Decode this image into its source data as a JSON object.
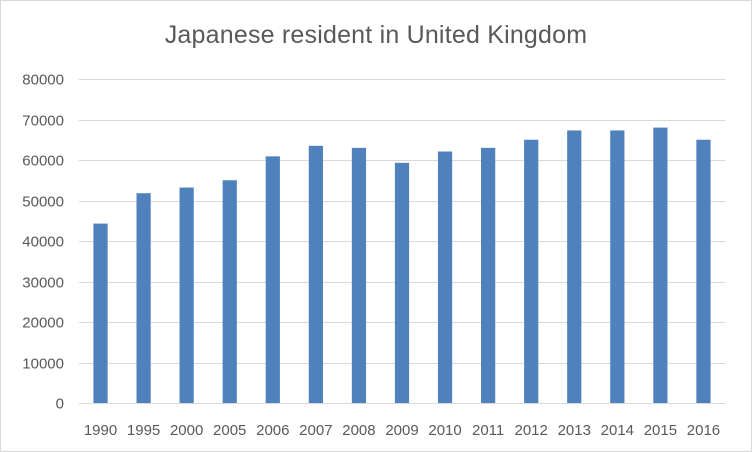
{
  "chart_data": {
    "type": "bar",
    "title": "Japanese resident in United Kingdom",
    "categories": [
      "1990",
      "1995",
      "2000",
      "2005",
      "2006",
      "2007",
      "2008",
      "2009",
      "2010",
      "2011",
      "2012",
      "2013",
      "2014",
      "2015",
      "2016"
    ],
    "values": [
      44300,
      51800,
      53200,
      55000,
      60900,
      63500,
      63000,
      59300,
      62100,
      63000,
      65000,
      67300,
      67300,
      68000,
      65000
    ],
    "xlabel": "",
    "ylabel": "",
    "ylim": [
      0,
      80000
    ],
    "yticks": [
      0,
      10000,
      20000,
      30000,
      40000,
      50000,
      60000,
      70000,
      80000
    ],
    "grid": true,
    "legend": "none",
    "bar_color": "#4f81bd",
    "grid_color": "#d9d9d9"
  }
}
